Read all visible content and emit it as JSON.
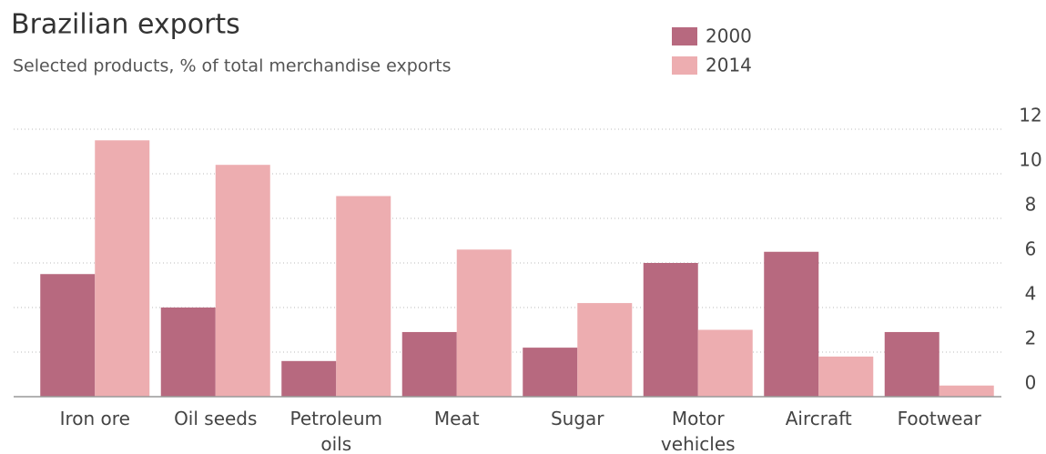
{
  "chart_data": {
    "type": "bar",
    "title": "Brazilian exports",
    "subtitle": "Selected products, % of total merchandise exports",
    "categories": [
      "Iron ore",
      "Oil seeds",
      "Petroleum oils",
      "Meat",
      "Sugar",
      "Motor vehicles",
      "Aircraft",
      "Footwear"
    ],
    "series": [
      {
        "name": "2000",
        "color": "#b7697f",
        "values": [
          5.5,
          4.0,
          1.6,
          2.9,
          2.2,
          6.0,
          6.5,
          2.9
        ]
      },
      {
        "name": "2014",
        "color": "#edadb0",
        "values": [
          11.5,
          10.4,
          9.0,
          6.6,
          4.2,
          3.0,
          1.8,
          0.5
        ]
      }
    ],
    "ylim": [
      0,
      12
    ],
    "yticks": [
      0,
      2,
      4,
      6,
      8,
      10,
      12
    ],
    "grid": true
  }
}
